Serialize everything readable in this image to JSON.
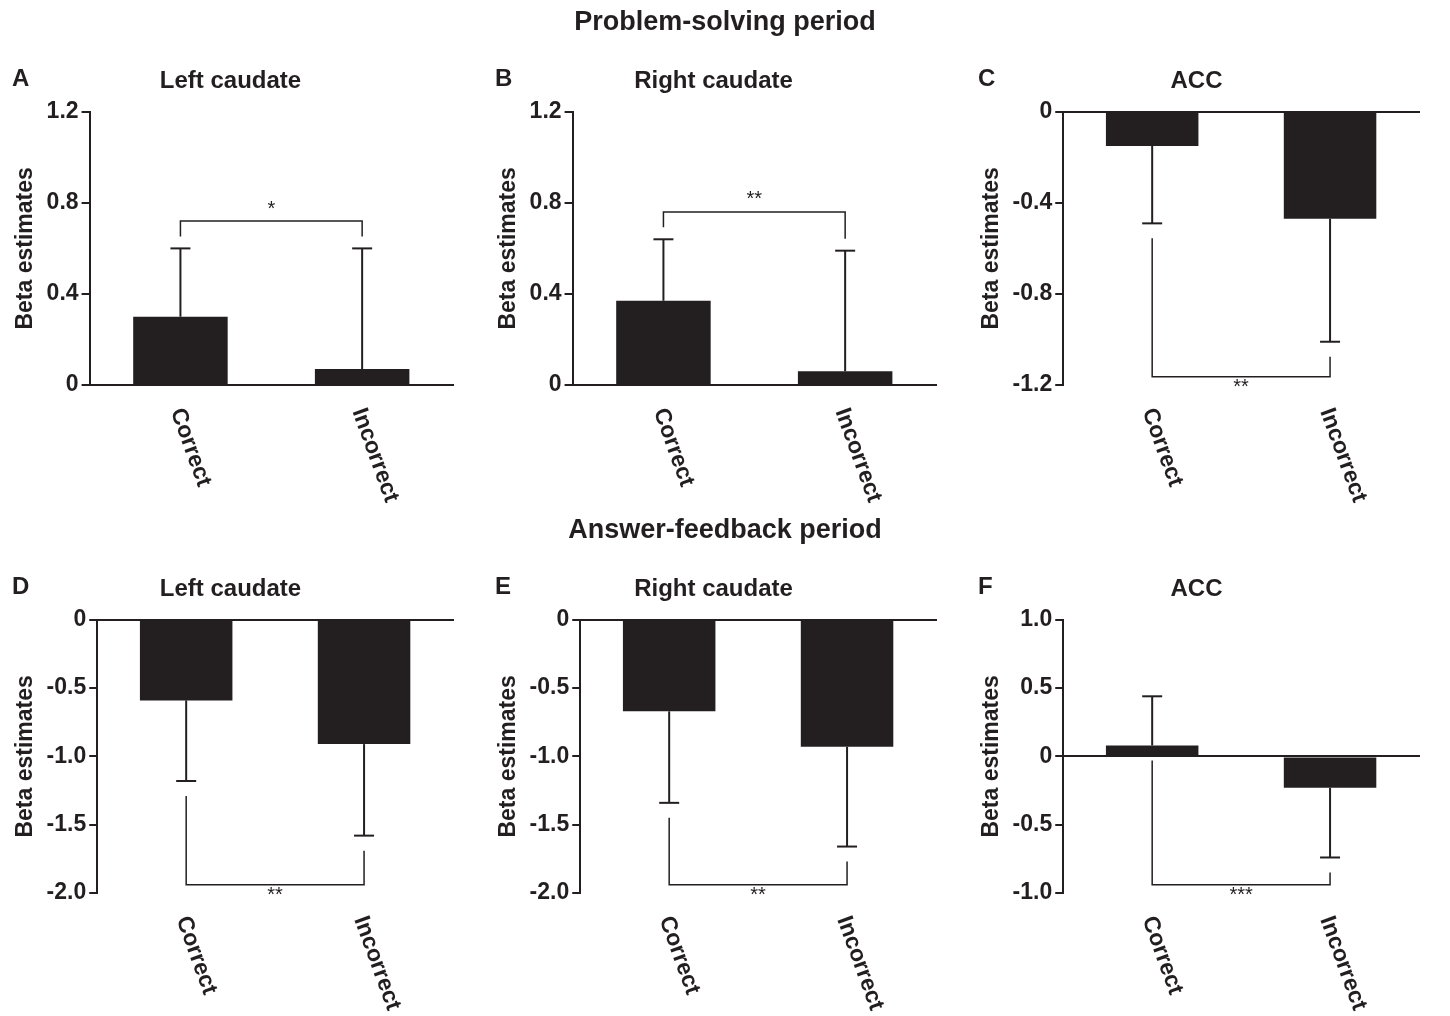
{
  "chart_data": [
    {
      "type": "bar",
      "title": "Left caudate",
      "ylabel": "Beta estimates",
      "categories": [
        "Correct",
        "Incorrect"
      ],
      "values": [
        0.3,
        0.07
      ],
      "errors": [
        [
          0.3,
          0.6
        ],
        [
          0.07,
          0.6
        ]
      ],
      "color": "#231f20",
      "ylim": [
        0,
        1.2
      ],
      "yticks": [
        0,
        0.4,
        0.8,
        1.2
      ],
      "annotations": [
        "A",
        "*",
        "Problem-solving period"
      ]
    },
    {
      "type": "bar",
      "title": "Right caudate",
      "ylabel": "Beta estimates",
      "categories": [
        "Correct",
        "Incorrect"
      ],
      "values": [
        0.37,
        0.06
      ],
      "errors": [
        [
          0.37,
          0.64
        ],
        [
          0.06,
          0.59
        ]
      ],
      "color": "#231f20",
      "ylim": [
        0,
        1.2
      ],
      "yticks": [
        0,
        0.4,
        0.8,
        1.2
      ],
      "annotations": [
        "B",
        "**"
      ]
    },
    {
      "type": "bar",
      "title": "ACC",
      "ylabel": "Beta estimates",
      "categories": [
        "Correct",
        "Incorrect"
      ],
      "values": [
        -0.15,
        -0.47
      ],
      "errors": [
        [
          -0.49,
          -0.15
        ],
        [
          -1.01,
          -0.47
        ]
      ],
      "color": "#231f20",
      "ylim": [
        -1.2,
        0
      ],
      "yticks": [
        -1.2,
        -0.8,
        -0.4,
        0
      ],
      "annotations": [
        "C",
        "**"
      ]
    },
    {
      "type": "bar",
      "title": "Left caudate",
      "ylabel": "Beta estimates",
      "categories": [
        "Correct",
        "Incorrect"
      ],
      "values": [
        -0.59,
        -0.91
      ],
      "errors": [
        [
          -1.18,
          -0.59
        ],
        [
          -1.58,
          -0.91
        ]
      ],
      "color": "#231f20",
      "ylim": [
        -2.0,
        0
      ],
      "yticks": [
        {
          "value": -2,
          "label": "-2.0"
        },
        {
          "value": -1.5,
          "label": "-1.5"
        },
        {
          "value": -1,
          "label": "-1.0"
        },
        {
          "value": -0.5,
          "label": "-0.5"
        },
        0
      ],
      "annotations": [
        "D",
        "**",
        "Answer-feedback period"
      ]
    },
    {
      "type": "bar",
      "title": "Right caudate",
      "ylabel": "Beta estimates",
      "categories": [
        "Correct",
        "Incorrect"
      ],
      "values": [
        -0.67,
        -0.93
      ],
      "errors": [
        [
          -1.34,
          -0.67
        ],
        [
          -1.66,
          -0.93
        ]
      ],
      "color": "#231f20",
      "ylim": [
        -2.0,
        0
      ],
      "yticks": [
        {
          "value": -2,
          "label": "-2.0"
        },
        {
          "value": -1.5,
          "label": "-1.5"
        },
        {
          "value": -1,
          "label": "-1.0"
        },
        {
          "value": -0.5,
          "label": "-0.5"
        },
        0
      ],
      "annotations": [
        "E",
        "**"
      ]
    },
    {
      "type": "bar",
      "title": "ACC",
      "ylabel": "Beta estimates",
      "categories": [
        "Correct",
        "Incorrect"
      ],
      "values": [
        0.08,
        -0.23
      ],
      "errors": [
        [
          0.08,
          0.44
        ],
        [
          -0.74,
          -0.23
        ]
      ],
      "color": "#231f20",
      "ylim": [
        -1.0,
        1.0
      ],
      "yticks": [
        {
          "value": -1,
          "label": "-1.0"
        },
        -0.5,
        0,
        0.5,
        {
          "value": 1,
          "label": "1.0"
        }
      ],
      "annotations": [
        "F",
        "***"
      ]
    }
  ]
}
